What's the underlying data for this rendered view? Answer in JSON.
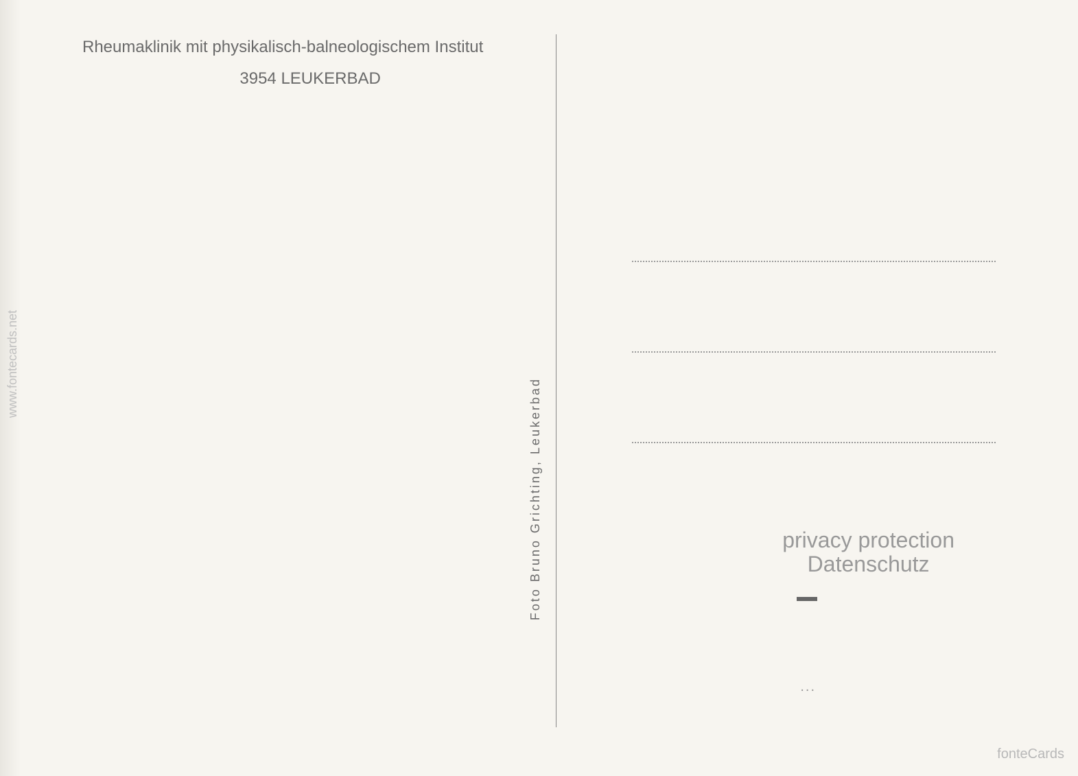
{
  "postcard": {
    "header_line1": "Rheumaklinik mit physikalisch-balneologischem Institut",
    "header_line2": "3954 LEUKERBAD",
    "photographer_credit": "Foto Bruno Grichting, Leukerbad",
    "privacy_line1": "privacy protection",
    "privacy_line2": "Datenschutz",
    "watermark_left": "www.fontecards.net",
    "fontecards_text": "fonteCards",
    "bottom_dots": "..."
  },
  "styling": {
    "background_color": "#f7f5f0",
    "text_color": "#6a6a6a",
    "watermark_color": "#c0c0c0",
    "privacy_color": "#999999",
    "divider_color": "#888888",
    "dotted_line_color": "#999999",
    "header_fontsize": 24,
    "credit_fontsize": 18,
    "privacy_fontsize": 32,
    "watermark_fontsize": 18,
    "address_line_count": 3,
    "address_line_spacing": 130
  }
}
